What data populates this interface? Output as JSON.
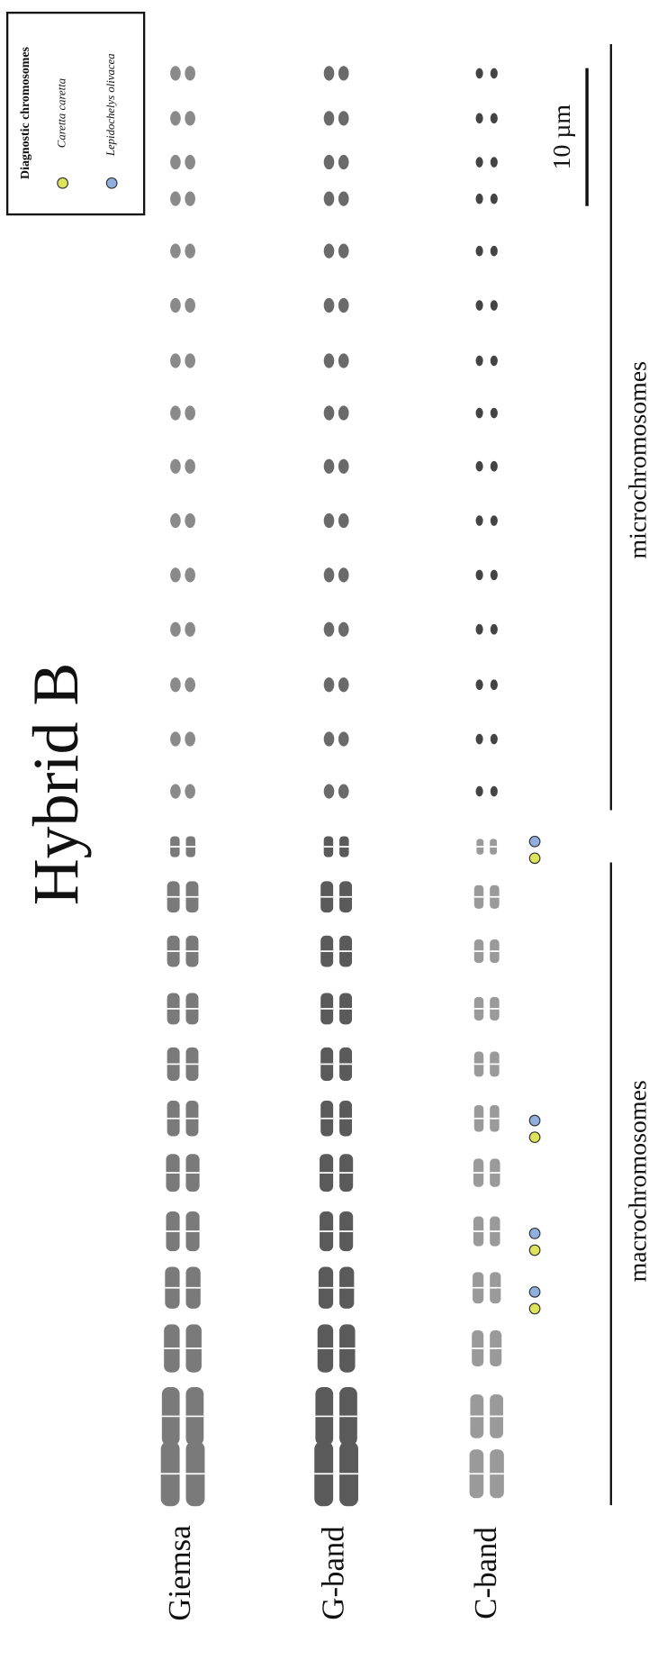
{
  "title": "Hybrid B",
  "row_labels": [
    "Giemsa",
    "G-band",
    "C-band"
  ],
  "group_labels": {
    "macro": "macrochromosomes",
    "micro": "microchromosomes"
  },
  "scale_bar": "10 µm",
  "legend": {
    "title": "Diagnostic chromosomes",
    "items": [
      {
        "label": "Caretta caretta"
      },
      {
        "label": "Lepidochelys olivacea"
      }
    ]
  }
}
